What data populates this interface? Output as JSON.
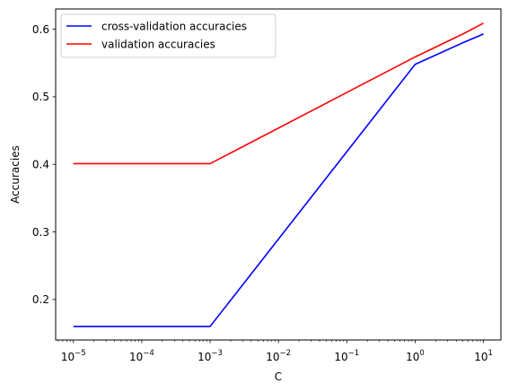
{
  "chart_data": {
    "type": "line",
    "xlabel": "C",
    "ylabel": "Accuracies",
    "xscale": "log",
    "xlim": [
      5.5e-06,
      18
    ],
    "ylim": [
      0.14,
      0.63
    ],
    "x_ticks": [
      {
        "value": 1e-05,
        "base": "10",
        "exp": "−5"
      },
      {
        "value": 0.0001,
        "base": "10",
        "exp": "−4"
      },
      {
        "value": 0.001,
        "base": "10",
        "exp": "−3"
      },
      {
        "value": 0.01,
        "base": "10",
        "exp": "−2"
      },
      {
        "value": 0.1,
        "base": "10",
        "exp": "−1"
      },
      {
        "value": 1,
        "base": "10",
        "exp": "0"
      },
      {
        "value": 10,
        "base": "10",
        "exp": "1"
      }
    ],
    "y_ticks": [
      {
        "value": 0.2,
        "label": "0.2"
      },
      {
        "value": 0.3,
        "label": "0.3"
      },
      {
        "value": 0.4,
        "label": "0.4"
      },
      {
        "value": 0.5,
        "label": "0.5"
      },
      {
        "value": 0.6,
        "label": "0.6"
      }
    ],
    "legend_position": "top-left",
    "grid": false,
    "series": [
      {
        "name": "cross-validation accuracies",
        "color": "#0000ff",
        "x": [
          1e-05,
          0.001,
          1,
          5,
          10
        ],
        "y": [
          0.16,
          0.16,
          0.548,
          0.58,
          0.593
        ]
      },
      {
        "name": "validation accuracies",
        "color": "#ff0000",
        "x": [
          1e-05,
          0.001,
          1,
          5,
          10
        ],
        "y": [
          0.401,
          0.401,
          0.559,
          0.593,
          0.609
        ]
      }
    ]
  }
}
